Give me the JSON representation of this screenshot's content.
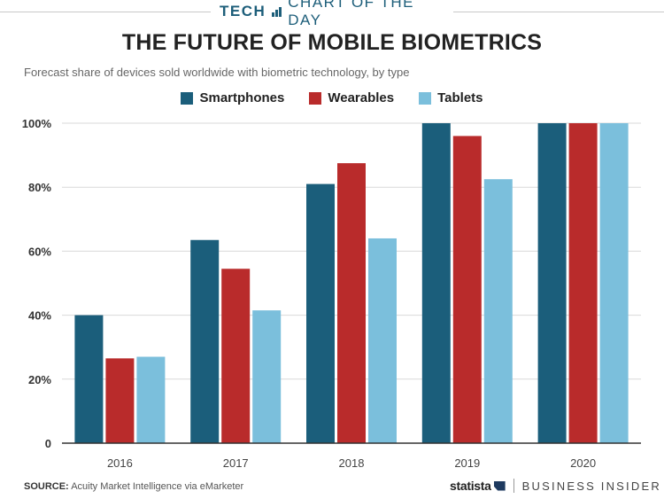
{
  "header": {
    "tag_section": "TECH",
    "tag_series": "CHART OF THE DAY",
    "title": "THE FUTURE OF MOBILE BIOMETRICS",
    "subtitle": "Forecast share of devices sold worldwide with biometric technology, by type",
    "icon": "bar-chart-icon"
  },
  "footer": {
    "source_label": "SOURCE:",
    "source_text": "Acuity Market Intelligence via eMarketer",
    "brand_statista": "statista",
    "brand_bi": "BUSINESS INSIDER"
  },
  "colors": {
    "Smartphones": "#1b5e7b",
    "Wearables": "#b92b2b",
    "Tablets": "#7bbfdc",
    "grid": "#d9d9d9",
    "accent": "#1d5e7a"
  },
  "chart_data": {
    "type": "bar",
    "categories": [
      "2016",
      "2017",
      "2018",
      "2019",
      "2020"
    ],
    "series": [
      {
        "name": "Smartphones",
        "values": [
          40,
          63.5,
          81,
          100,
          100
        ]
      },
      {
        "name": "Wearables",
        "values": [
          26.5,
          54.5,
          87.5,
          96,
          100
        ]
      },
      {
        "name": "Tablets",
        "values": [
          27,
          41.5,
          64,
          82.5,
          100
        ]
      }
    ],
    "yticks": [
      "0",
      "20%",
      "40%",
      "60%",
      "80%",
      "100%"
    ],
    "ylim": [
      0,
      100
    ],
    "grid": true,
    "legend": "top-center"
  }
}
